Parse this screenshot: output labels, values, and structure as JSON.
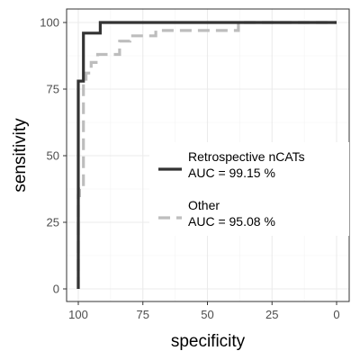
{
  "chart_data": {
    "type": "line",
    "title": "",
    "xlabel": "specificity",
    "ylabel": "sensitivity",
    "x_reversed": true,
    "xlim": [
      100,
      0
    ],
    "ylim": [
      0,
      100
    ],
    "xticks": [
      100,
      75,
      50,
      25,
      0
    ],
    "xtick_labels": [
      "100",
      "75",
      "50",
      "25",
      "0"
    ],
    "yticks": [
      0,
      25,
      50,
      75,
      100
    ],
    "ytick_labels": [
      "0",
      "25",
      "50",
      "75",
      "100"
    ],
    "grid": true,
    "legend_position": "center-right",
    "series": [
      {
        "name": "Retrospective nCATs",
        "auc_label": "AUC = 99.15 %",
        "color": "#333333",
        "style": "solid",
        "x": [
          100,
          100,
          100,
          100,
          100,
          99.8,
          99.2,
          99.2,
          98,
          98,
          96.7,
          96.7,
          91.5,
          91.5,
          85,
          40,
          0
        ],
        "y": [
          0,
          4,
          37.5,
          55,
          78,
          78,
          78,
          78,
          78,
          96,
          96,
          96,
          96,
          100,
          100,
          100,
          100
        ]
      },
      {
        "name": "Other",
        "auc_label": "AUC = 95.08 %",
        "color": "#bdbdbd",
        "style": "dashed",
        "x": [
          100,
          100,
          99.5,
          99.5,
          98,
          98,
          97,
          97,
          95,
          95,
          92.5,
          92.5,
          84,
          84,
          80,
          80,
          70,
          70,
          50,
          50,
          38,
          38,
          0
        ],
        "y": [
          0,
          35,
          35,
          37.5,
          37.5,
          78,
          78,
          81,
          81,
          85,
          85,
          88,
          88,
          93,
          93,
          95,
          95,
          97,
          97,
          97,
          97,
          100,
          100
        ]
      }
    ]
  }
}
